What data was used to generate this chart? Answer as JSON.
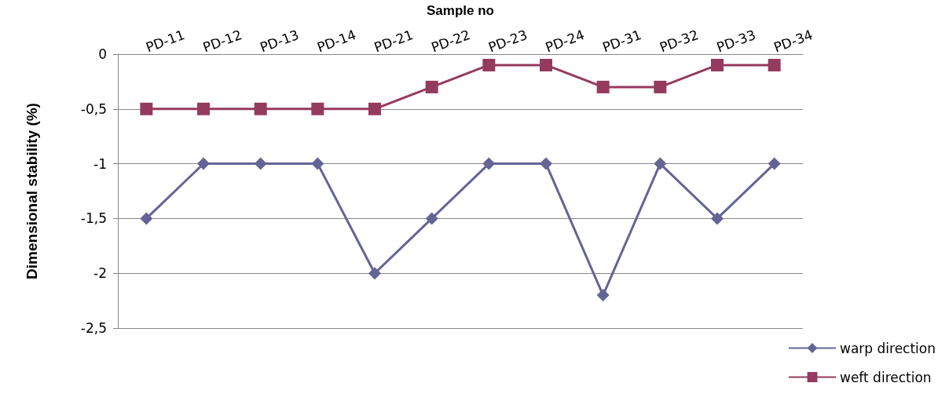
{
  "chart_data": {
    "type": "line",
    "xlabel": "Sample no",
    "ylabel": "Dimensional stability (%)",
    "categories": [
      "PD-11",
      "PD-12",
      "PD-13",
      "PD-14",
      "PD-21",
      "PD-22",
      "PD-23",
      "PD-24",
      "PD-31",
      "PD-32",
      "PD-33",
      "PD-34"
    ],
    "series": [
      {
        "name": "warp direction",
        "color": "#646497",
        "marker": "diamond",
        "values": [
          -1.5,
          -1,
          -1,
          -1,
          -2,
          -1.5,
          -1,
          -1,
          -2.2,
          -1,
          -1.5,
          -1
        ]
      },
      {
        "name": "weft direction",
        "color": "#953a5f",
        "marker": "square",
        "values": [
          -0.5,
          -0.5,
          -0.5,
          -0.5,
          -0.5,
          -0.3,
          -0.1,
          -0.1,
          -0.3,
          -0.3,
          -0.1,
          -0.1
        ]
      }
    ],
    "ylim": [
      -2.5,
      0
    ],
    "yticks": [
      {
        "value": 0,
        "label": "0"
      },
      {
        "value": -0.5,
        "label": "-0,5"
      },
      {
        "value": -1,
        "label": "-1"
      },
      {
        "value": -1.5,
        "label": "-1,5"
      },
      {
        "value": -2,
        "label": "-2"
      },
      {
        "value": -2.5,
        "label": "-2,5"
      }
    ],
    "grid": "y",
    "legend": "bottom right",
    "line_style": "solid"
  }
}
